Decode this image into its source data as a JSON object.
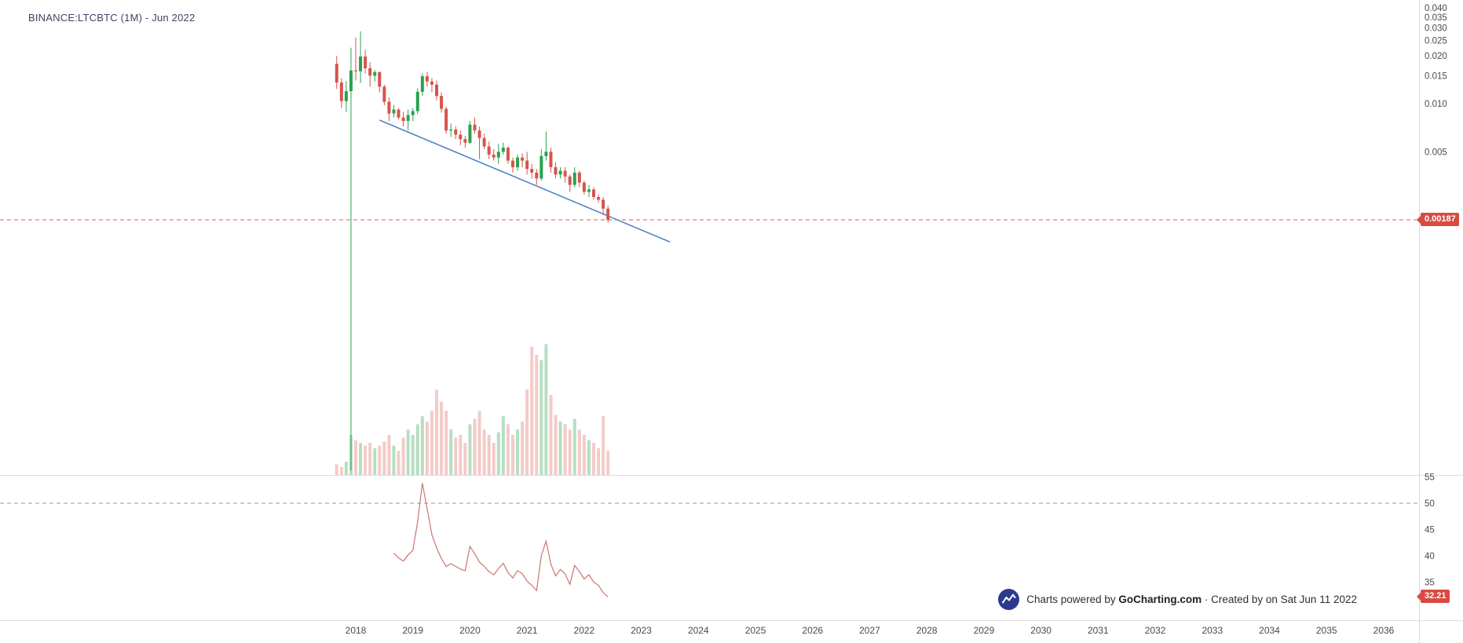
{
  "header": {
    "symbol_label": "BINANCE:LTCBTC (1M) - Jun 2022"
  },
  "price_axis": {
    "labels": [
      "0.040",
      "0.035",
      "0.030",
      "0.025",
      "0.020",
      "0.015",
      "0.010",
      "0.005"
    ],
    "last_price_label": "0.00187"
  },
  "rsi_axis": {
    "labels": [
      "55",
      "50",
      "45",
      "40",
      "35"
    ],
    "last_value_label": "32.21"
  },
  "x_axis": {
    "years": [
      "2018",
      "2019",
      "2020",
      "2021",
      "2022",
      "2023",
      "2024",
      "2025",
      "2026",
      "2027",
      "2028",
      "2029",
      "2030",
      "2031",
      "2032",
      "2033",
      "2034",
      "2035",
      "2036"
    ]
  },
  "footer": {
    "powered_prefix": "Charts powered by ",
    "brand": "GoCharting.com",
    "created_suffix": " · Created by  on Sat Jun 11 2022"
  },
  "colors": {
    "up": "#2aa14f",
    "down": "#d6544c",
    "volume_up": "rgba(42,161,79,0.35)",
    "volume_down": "rgba(214,84,76,0.30)",
    "trendline": "#4f86c6",
    "last_price_line": "#e8544e",
    "rsi_line": "#c9756f",
    "rsi_level_line": "#6f9fd4",
    "badge_bg": "#d84b42",
    "logo_bg": "#2b3a8f",
    "axis_text": "#4a4a4a",
    "separator": "#dcdcdc"
  },
  "chart_data": {
    "type": "candlestick",
    "title": "BINANCE:LTCBTC (1M) - Jun 2022",
    "symbol": "BINANCE:LTCBTC",
    "timeframe": "1M",
    "scale": "logarithmic",
    "legend_position": "none",
    "grid": false,
    "price_axis_ticks": [
      "0.040",
      "0.035",
      "0.030",
      "0.025",
      "0.020",
      "0.015",
      "0.010",
      "0.005"
    ],
    "x_axis_years": [
      2018,
      2019,
      2020,
      2021,
      2022,
      2023,
      2024,
      2025,
      2026,
      2027,
      2028,
      2029,
      2030,
      2031,
      2032,
      2033,
      2034,
      2035,
      2036
    ],
    "last_price": 0.00187,
    "volume_scale_note": "relative units, max = 100",
    "candles": [
      {
        "t": "2017-09",
        "o": 0.0178,
        "h": 0.02,
        "l": 0.0124,
        "c": 0.0136,
        "v": 8
      },
      {
        "t": "2017-10",
        "o": 0.0136,
        "h": 0.0145,
        "l": 0.0094,
        "c": 0.0104,
        "v": 6
      },
      {
        "t": "2017-11",
        "o": 0.0104,
        "h": 0.0139,
        "l": 0.0089,
        "c": 0.012,
        "v": 10
      },
      {
        "t": "2017-12",
        "o": 0.012,
        "h": 0.0225,
        "l": 5e-05,
        "c": 0.0162,
        "v": 30
      },
      {
        "t": "2018-01",
        "o": 0.0162,
        "h": 0.026,
        "l": 0.014,
        "c": 0.016,
        "v": 26
      },
      {
        "t": "2018-02",
        "o": 0.016,
        "h": 0.0285,
        "l": 0.0135,
        "c": 0.0198,
        "v": 24
      },
      {
        "t": "2018-03",
        "o": 0.0198,
        "h": 0.0218,
        "l": 0.0155,
        "c": 0.0167,
        "v": 22
      },
      {
        "t": "2018-04",
        "o": 0.0167,
        "h": 0.0182,
        "l": 0.0128,
        "c": 0.015,
        "v": 24
      },
      {
        "t": "2018-05",
        "o": 0.015,
        "h": 0.0163,
        "l": 0.0138,
        "c": 0.0158,
        "v": 20
      },
      {
        "t": "2018-06",
        "o": 0.0158,
        "h": 0.016,
        "l": 0.0118,
        "c": 0.0128,
        "v": 22
      },
      {
        "t": "2018-07",
        "o": 0.0128,
        "h": 0.0132,
        "l": 0.0098,
        "c": 0.0103,
        "v": 25
      },
      {
        "t": "2018-08",
        "o": 0.0103,
        "h": 0.011,
        "l": 0.0078,
        "c": 0.0087,
        "v": 30
      },
      {
        "t": "2018-09",
        "o": 0.0087,
        "h": 0.0098,
        "l": 0.0082,
        "c": 0.0092,
        "v": 22
      },
      {
        "t": "2018-10",
        "o": 0.0092,
        "h": 0.0094,
        "l": 0.008,
        "c": 0.0082,
        "v": 18
      },
      {
        "t": "2018-11",
        "o": 0.0082,
        "h": 0.0089,
        "l": 0.0072,
        "c": 0.0078,
        "v": 28
      },
      {
        "t": "2018-12",
        "o": 0.0078,
        "h": 0.0092,
        "l": 0.0068,
        "c": 0.0085,
        "v": 34
      },
      {
        "t": "2019-01",
        "o": 0.0085,
        "h": 0.0094,
        "l": 0.0078,
        "c": 0.009,
        "v": 30
      },
      {
        "t": "2019-02",
        "o": 0.009,
        "h": 0.0125,
        "l": 0.0086,
        "c": 0.0119,
        "v": 38
      },
      {
        "t": "2019-03",
        "o": 0.0119,
        "h": 0.0155,
        "l": 0.0112,
        "c": 0.0149,
        "v": 44
      },
      {
        "t": "2019-04",
        "o": 0.0149,
        "h": 0.0158,
        "l": 0.0128,
        "c": 0.0138,
        "v": 40
      },
      {
        "t": "2019-05",
        "o": 0.0138,
        "h": 0.0145,
        "l": 0.0118,
        "c": 0.0132,
        "v": 48
      },
      {
        "t": "2019-06",
        "o": 0.0132,
        "h": 0.014,
        "l": 0.0105,
        "c": 0.0112,
        "v": 64
      },
      {
        "t": "2019-07",
        "o": 0.0112,
        "h": 0.0118,
        "l": 0.0088,
        "c": 0.0093,
        "v": 55
      },
      {
        "t": "2019-08",
        "o": 0.0093,
        "h": 0.0096,
        "l": 0.0065,
        "c": 0.0068,
        "v": 48
      },
      {
        "t": "2019-09",
        "o": 0.0068,
        "h": 0.0075,
        "l": 0.0062,
        "c": 0.0069,
        "v": 34
      },
      {
        "t": "2019-10",
        "o": 0.0069,
        "h": 0.0072,
        "l": 0.006,
        "c": 0.0064,
        "v": 28
      },
      {
        "t": "2019-11",
        "o": 0.0064,
        "h": 0.0068,
        "l": 0.0055,
        "c": 0.006,
        "v": 30
      },
      {
        "t": "2019-12",
        "o": 0.006,
        "h": 0.0063,
        "l": 0.0053,
        "c": 0.0057,
        "v": 24
      },
      {
        "t": "2020-01",
        "o": 0.0057,
        "h": 0.0078,
        "l": 0.0056,
        "c": 0.0074,
        "v": 38
      },
      {
        "t": "2020-02",
        "o": 0.0074,
        "h": 0.0082,
        "l": 0.0065,
        "c": 0.0068,
        "v": 42
      },
      {
        "t": "2020-03",
        "o": 0.0068,
        "h": 0.0072,
        "l": 0.0045,
        "c": 0.0061,
        "v": 48
      },
      {
        "t": "2020-04",
        "o": 0.0061,
        "h": 0.0065,
        "l": 0.0052,
        "c": 0.0054,
        "v": 34
      },
      {
        "t": "2020-05",
        "o": 0.0054,
        "h": 0.0058,
        "l": 0.0045,
        "c": 0.0048,
        "v": 30
      },
      {
        "t": "2020-06",
        "o": 0.0048,
        "h": 0.0052,
        "l": 0.0044,
        "c": 0.0046,
        "v": 24
      },
      {
        "t": "2020-07",
        "o": 0.0046,
        "h": 0.0056,
        "l": 0.0042,
        "c": 0.005,
        "v": 32
      },
      {
        "t": "2020-08",
        "o": 0.005,
        "h": 0.0057,
        "l": 0.0048,
        "c": 0.0053,
        "v": 44
      },
      {
        "t": "2020-09",
        "o": 0.0053,
        "h": 0.0054,
        "l": 0.0042,
        "c": 0.0044,
        "v": 38
      },
      {
        "t": "2020-10",
        "o": 0.0044,
        "h": 0.0046,
        "l": 0.0037,
        "c": 0.004,
        "v": 30
      },
      {
        "t": "2020-11",
        "o": 0.004,
        "h": 0.0048,
        "l": 0.0038,
        "c": 0.0046,
        "v": 34
      },
      {
        "t": "2020-12",
        "o": 0.0046,
        "h": 0.0049,
        "l": 0.004,
        "c": 0.0044,
        "v": 40
      },
      {
        "t": "2021-01",
        "o": 0.0044,
        "h": 0.005,
        "l": 0.0036,
        "c": 0.0039,
        "v": 64
      },
      {
        "t": "2021-02",
        "o": 0.0039,
        "h": 0.0042,
        "l": 0.0034,
        "c": 0.0037,
        "v": 96
      },
      {
        "t": "2021-03",
        "o": 0.0037,
        "h": 0.0039,
        "l": 0.0031,
        "c": 0.0034,
        "v": 90
      },
      {
        "t": "2021-04",
        "o": 0.0034,
        "h": 0.0052,
        "l": 0.0033,
        "c": 0.0047,
        "v": 86
      },
      {
        "t": "2021-05",
        "o": 0.0047,
        "h": 0.0067,
        "l": 0.0044,
        "c": 0.005,
        "v": 98
      },
      {
        "t": "2021-06",
        "o": 0.005,
        "h": 0.0053,
        "l": 0.0037,
        "c": 0.004,
        "v": 60
      },
      {
        "t": "2021-07",
        "o": 0.004,
        "h": 0.0043,
        "l": 0.0034,
        "c": 0.0036,
        "v": 45
      },
      {
        "t": "2021-08",
        "o": 0.0036,
        "h": 0.004,
        "l": 0.0034,
        "c": 0.0038,
        "v": 40
      },
      {
        "t": "2021-09",
        "o": 0.0038,
        "h": 0.004,
        "l": 0.0032,
        "c": 0.0035,
        "v": 38
      },
      {
        "t": "2021-10",
        "o": 0.0035,
        "h": 0.0036,
        "l": 0.0028,
        "c": 0.0031,
        "v": 34
      },
      {
        "t": "2021-11",
        "o": 0.0031,
        "h": 0.004,
        "l": 0.003,
        "c": 0.0037,
        "v": 42
      },
      {
        "t": "2021-12",
        "o": 0.0037,
        "h": 0.0038,
        "l": 0.003,
        "c": 0.0032,
        "v": 34
      },
      {
        "t": "2022-01",
        "o": 0.0032,
        "h": 0.0033,
        "l": 0.0027,
        "c": 0.0028,
        "v": 30
      },
      {
        "t": "2022-02",
        "o": 0.0028,
        "h": 0.0031,
        "l": 0.0026,
        "c": 0.0029,
        "v": 26
      },
      {
        "t": "2022-03",
        "o": 0.0029,
        "h": 0.003,
        "l": 0.0025,
        "c": 0.0026,
        "v": 24
      },
      {
        "t": "2022-04",
        "o": 0.0026,
        "h": 0.0027,
        "l": 0.0024,
        "c": 0.0025,
        "v": 20
      },
      {
        "t": "2022-05",
        "o": 0.0025,
        "h": 0.0026,
        "l": 0.002,
        "c": 0.0022,
        "v": 44
      },
      {
        "t": "2022-06",
        "o": 0.0022,
        "h": 0.0023,
        "l": 0.0018,
        "c": 0.00187,
        "v": 18
      }
    ],
    "trendline": {
      "start_month": "2018-06",
      "start_price": 0.0079,
      "end_month": "2023-07",
      "end_price": 0.00136
    },
    "rsi": {
      "start_month": "2018-09",
      "level_line": 50,
      "last_value": 32.21,
      "axis_ticks": [
        55,
        50,
        45,
        40,
        35
      ],
      "values": [
        40.5,
        39.6,
        39.0,
        40.2,
        41.0,
        46.5,
        53.8,
        49.0,
        44.0,
        41.5,
        39.5,
        38.0,
        38.5,
        38.0,
        37.5,
        37.2,
        41.8,
        40.4,
        38.8,
        38.0,
        37.0,
        36.4,
        37.6,
        38.6,
        36.8,
        35.8,
        37.2,
        36.6,
        35.2,
        34.4,
        33.4,
        40.0,
        42.8,
        38.4,
        36.2,
        37.4,
        36.6,
        34.6,
        38.2,
        37.0,
        35.6,
        36.4,
        35.0,
        34.4,
        33.0,
        32.21
      ]
    }
  }
}
